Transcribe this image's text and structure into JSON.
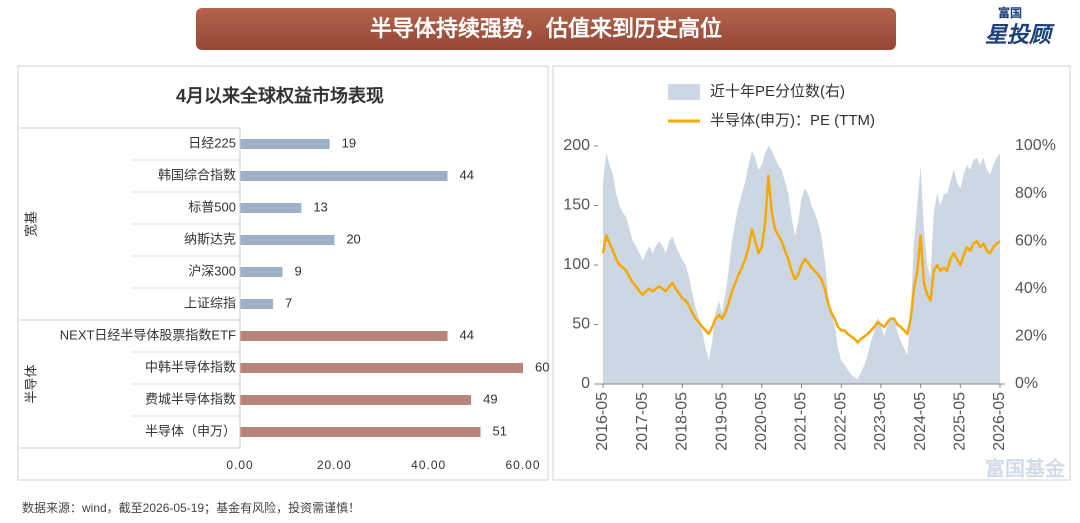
{
  "header": {
    "title": "半导体持续强势，估值来到历史高位",
    "logo": [
      "富国",
      "星投顾"
    ]
  },
  "watermark": "富国基金",
  "footer": "数据来源：wind，截至2026-05-19；基金有风险，投资需谨慎！",
  "chart_data": [
    {
      "type": "bar",
      "orientation": "horizontal",
      "title": "4月以来全球权益市场表现",
      "groups": [
        {
          "name": "宽基",
          "color": "#9db1c9",
          "categories": [
            "日经225",
            "韩国综合指数",
            "标普500",
            "纳斯达克",
            "沪深300",
            "上证综指"
          ],
          "values": [
            19,
            44,
            13,
            20,
            9,
            7
          ]
        },
        {
          "name": "半导体",
          "color": "#b8857b",
          "categories": [
            "NEXT日经半导体股票指数ETF",
            "中韩半导体指数",
            "费城半导体指数",
            "半导体（申万）"
          ],
          "values": [
            44,
            60,
            49,
            51
          ]
        }
      ],
      "xlim": [
        0,
        60
      ],
      "xticks": [
        {
          "value": 0,
          "label": "0.00"
        },
        {
          "value": 20,
          "label": "20.00"
        },
        {
          "value": 40,
          "label": "40.00"
        },
        {
          "value": 60,
          "label": "60.00"
        }
      ]
    },
    {
      "type": "line",
      "x": [
        "2016-05",
        "2016-06",
        "2016-07",
        "2016-08",
        "2016-09",
        "2016-10",
        "2016-11",
        "2016-12",
        "2017-01",
        "2017-02",
        "2017-03",
        "2017-04",
        "2017-05",
        "2017-06",
        "2017-07",
        "2017-08",
        "2017-09",
        "2017-10",
        "2017-11",
        "2017-12",
        "2018-01",
        "2018-02",
        "2018-03",
        "2018-04",
        "2018-05",
        "2018-06",
        "2018-07",
        "2018-08",
        "2018-09",
        "2018-10",
        "2018-11",
        "2018-12",
        "2019-01",
        "2019-02",
        "2019-03",
        "2019-04",
        "2019-05",
        "2019-06",
        "2019-07",
        "2019-08",
        "2019-09",
        "2019-10",
        "2019-11",
        "2019-12",
        "2020-01",
        "2020-02",
        "2020-03",
        "2020-04",
        "2020-05",
        "2020-06",
        "2020-07",
        "2020-08",
        "2020-09",
        "2020-10",
        "2020-11",
        "2020-12",
        "2021-01",
        "2021-02",
        "2021-03",
        "2021-04",
        "2021-05",
        "2021-06",
        "2021-07",
        "2021-08",
        "2021-09",
        "2021-10",
        "2021-11",
        "2021-12",
        "2022-01",
        "2022-02",
        "2022-03",
        "2022-04",
        "2022-05",
        "2022-06",
        "2022-07",
        "2022-08",
        "2022-09",
        "2022-10",
        "2022-11",
        "2022-12",
        "2023-01",
        "2023-02",
        "2023-03",
        "2023-04",
        "2023-05",
        "2023-06",
        "2023-07",
        "2023-08",
        "2023-09",
        "2023-10",
        "2023-11",
        "2023-12",
        "2024-01",
        "2024-02",
        "2024-03",
        "2024-04",
        "2024-05",
        "2024-06",
        "2024-07",
        "2024-08",
        "2024-09",
        "2024-10",
        "2024-11",
        "2024-12",
        "2025-01",
        "2025-02",
        "2025-03",
        "2025-04",
        "2025-05",
        "2025-06",
        "2025-07",
        "2025-08",
        "2025-09",
        "2025-10",
        "2025-11",
        "2025-12",
        "2026-01",
        "2026-02",
        "2026-03",
        "2026-04",
        "2026-05"
      ],
      "series": [
        {
          "name": "近十年PE分位数(右)",
          "type": "area",
          "axis": "y2",
          "color": "#cdd7e3",
          "values": [
            85,
            97,
            92,
            88,
            80,
            75,
            72,
            70,
            65,
            60,
            58,
            55,
            52,
            55,
            58,
            55,
            58,
            60,
            58,
            55,
            60,
            62,
            58,
            55,
            52,
            50,
            45,
            38,
            32,
            28,
            22,
            15,
            10,
            18,
            30,
            35,
            30,
            38,
            48,
            60,
            68,
            75,
            80,
            85,
            92,
            98,
            95,
            90,
            92,
            97,
            100,
            98,
            95,
            92,
            90,
            85,
            80,
            70,
            62,
            68,
            78,
            82,
            80,
            75,
            72,
            68,
            62,
            52,
            38,
            30,
            25,
            15,
            10,
            8,
            6,
            4,
            3,
            2,
            5,
            8,
            12,
            18,
            22,
            28,
            25,
            20,
            25,
            28,
            28,
            22,
            18,
            15,
            12,
            30,
            60,
            75,
            92,
            65,
            50,
            45,
            72,
            80,
            75,
            80,
            80,
            85,
            90,
            85,
            82,
            88,
            92,
            90,
            94,
            95,
            92,
            95,
            90,
            88,
            92,
            95,
            97
          ]
        },
        {
          "name": "半导体(申万)：PE (TTM)",
          "type": "line",
          "color": "#f5a800",
          "values": [
            110,
            125,
            118,
            112,
            105,
            100,
            98,
            95,
            90,
            85,
            82,
            78,
            75,
            78,
            80,
            78,
            80,
            82,
            80,
            78,
            82,
            85,
            80,
            76,
            72,
            70,
            66,
            60,
            55,
            52,
            48,
            45,
            42,
            48,
            55,
            58,
            55,
            60,
            68,
            78,
            85,
            92,
            98,
            105,
            115,
            130,
            120,
            110,
            115,
            135,
            175,
            145,
            130,
            125,
            120,
            112,
            105,
            95,
            88,
            92,
            100,
            105,
            102,
            98,
            95,
            92,
            88,
            80,
            68,
            60,
            55,
            48,
            45,
            45,
            42,
            40,
            38,
            35,
            38,
            40,
            42,
            45,
            48,
            52,
            50,
            48,
            52,
            55,
            55,
            50,
            48,
            45,
            42,
            55,
            80,
            95,
            125,
            85,
            75,
            70,
            95,
            100,
            95,
            98,
            95,
            105,
            110,
            105,
            100,
            108,
            115,
            112,
            118,
            120,
            115,
            118,
            112,
            110,
            115,
            118,
            120
          ]
        }
      ],
      "xticks": [
        "2016-05",
        "2017-05",
        "2018-05",
        "2019-05",
        "2020-05",
        "2021-05",
        "2022-05",
        "2023-05",
        "2024-05",
        "2025-05",
        "2026-05"
      ],
      "ylim": [
        0,
        200
      ],
      "yticks": [
        0,
        50,
        100,
        150,
        200
      ],
      "y2lim": [
        0,
        100
      ],
      "y2ticks": [
        {
          "value": 0,
          "label": "0%"
        },
        {
          "value": 20,
          "label": "20%"
        },
        {
          "value": 40,
          "label": "40%"
        },
        {
          "value": 60,
          "label": "60%"
        },
        {
          "value": 80,
          "label": "80%"
        },
        {
          "value": 100,
          "label": "100%"
        }
      ]
    }
  ]
}
